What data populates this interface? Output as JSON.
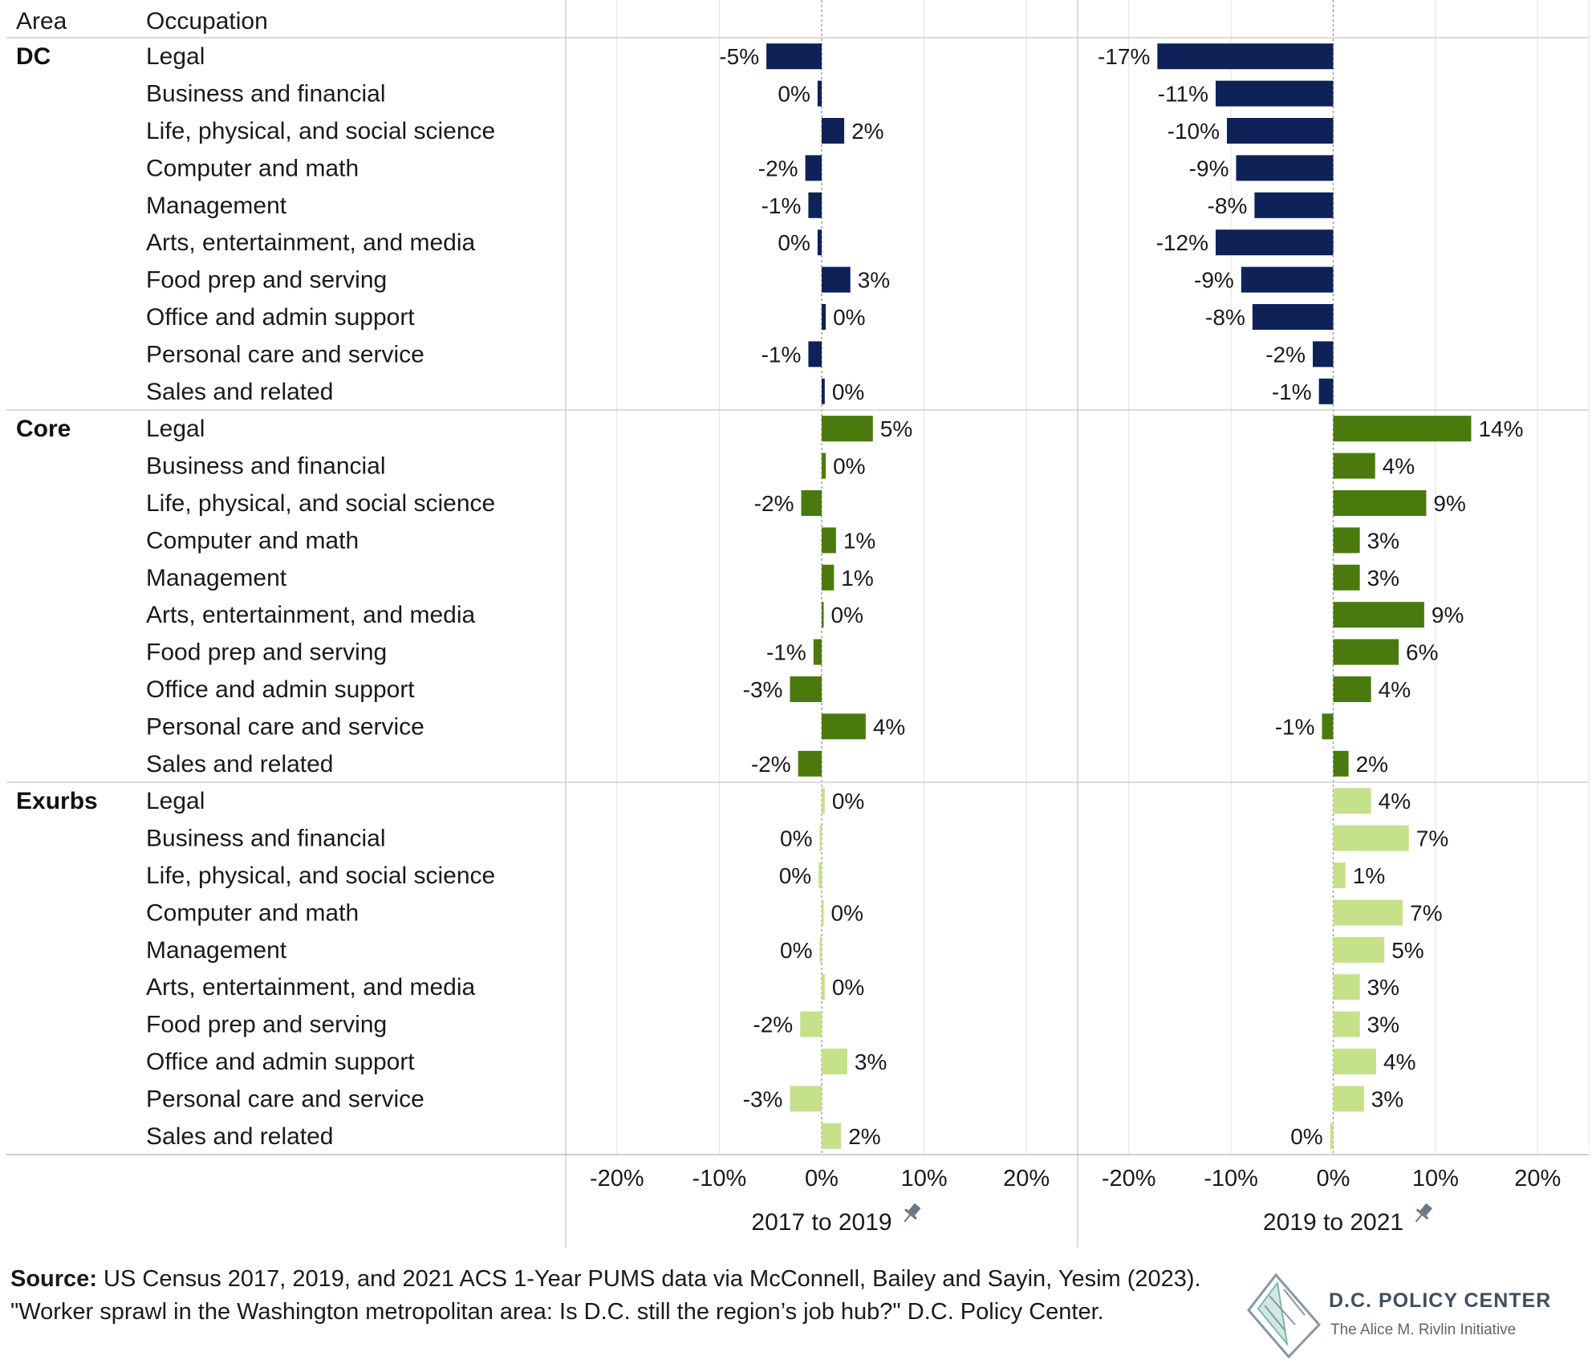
{
  "header": {
    "area": "Area",
    "occupation": "Occupation"
  },
  "chart_data": {
    "type": "bar",
    "orientation": "horizontal",
    "xlim": [
      -25,
      25
    ],
    "x_ticks": [
      "-20%",
      "-10%",
      "0%",
      "10%",
      "20%"
    ],
    "x_tick_values": [
      -20,
      -10,
      0,
      10,
      20
    ],
    "panels": [
      "2017 to 2019",
      "2019 to 2021"
    ],
    "colors": {
      "DC": "#0e2257",
      "Core": "#4a7a0e",
      "Exurbs": "#c5e18a"
    },
    "groups": [
      {
        "area": "DC",
        "rows": [
          {
            "occupation": "Legal",
            "values": [
              -5.4,
              -17.2
            ],
            "labels": [
              "-5%",
              "-17%"
            ]
          },
          {
            "occupation": "Business and financial",
            "values": [
              -0.4,
              -11.5
            ],
            "labels": [
              "0%",
              "-11%"
            ]
          },
          {
            "occupation": "Life, physical, and social science",
            "values": [
              2.2,
              -10.4
            ],
            "labels": [
              "2%",
              "-10%"
            ]
          },
          {
            "occupation": "Computer and math",
            "values": [
              -1.6,
              -9.5
            ],
            "labels": [
              "-2%",
              "-9%"
            ]
          },
          {
            "occupation": "Management",
            "values": [
              -1.3,
              -7.7
            ],
            "labels": [
              "-1%",
              "-8%"
            ]
          },
          {
            "occupation": "Arts, entertainment, and media",
            "values": [
              -0.4,
              -11.5
            ],
            "labels": [
              "0%",
              "-12%"
            ]
          },
          {
            "occupation": "Food prep and serving",
            "values": [
              2.8,
              -9.0
            ],
            "labels": [
              "3%",
              "-9%"
            ]
          },
          {
            "occupation": "Office and admin support",
            "values": [
              0.4,
              -7.9
            ],
            "labels": [
              "0%",
              "-8%"
            ]
          },
          {
            "occupation": "Personal care and service",
            "values": [
              -1.3,
              -2.0
            ],
            "labels": [
              "-1%",
              "-2%"
            ]
          },
          {
            "occupation": "Sales and related",
            "values": [
              0.3,
              -1.4
            ],
            "labels": [
              "0%",
              "-1%"
            ]
          }
        ]
      },
      {
        "area": "Core",
        "rows": [
          {
            "occupation": "Legal",
            "values": [
              5.0,
              13.5
            ],
            "labels": [
              "5%",
              "14%"
            ]
          },
          {
            "occupation": "Business and financial",
            "values": [
              0.4,
              4.1
            ],
            "labels": [
              "0%",
              "4%"
            ]
          },
          {
            "occupation": "Life, physical, and social science",
            "values": [
              -2.0,
              9.1
            ],
            "labels": [
              "-2%",
              "9%"
            ]
          },
          {
            "occupation": "Computer and math",
            "values": [
              1.4,
              2.6
            ],
            "labels": [
              "1%",
              "3%"
            ]
          },
          {
            "occupation": "Management",
            "values": [
              1.2,
              2.6
            ],
            "labels": [
              "1%",
              "3%"
            ]
          },
          {
            "occupation": "Arts, entertainment, and media",
            "values": [
              0.2,
              8.9
            ],
            "labels": [
              "0%",
              "9%"
            ]
          },
          {
            "occupation": "Food prep and serving",
            "values": [
              -0.8,
              6.4
            ],
            "labels": [
              "-1%",
              "6%"
            ]
          },
          {
            "occupation": "Office and admin support",
            "values": [
              -3.1,
              3.7
            ],
            "labels": [
              "-3%",
              "4%"
            ]
          },
          {
            "occupation": "Personal care and service",
            "values": [
              4.3,
              -1.1
            ],
            "labels": [
              "4%",
              "-1%"
            ]
          },
          {
            "occupation": "Sales and related",
            "values": [
              -2.3,
              1.5
            ],
            "labels": [
              "-2%",
              "2%"
            ]
          }
        ]
      },
      {
        "area": "Exurbs",
        "rows": [
          {
            "occupation": "Legal",
            "values": [
              0.3,
              3.7
            ],
            "labels": [
              "0%",
              "4%"
            ]
          },
          {
            "occupation": "Business and financial",
            "values": [
              -0.1,
              7.4
            ],
            "labels": [
              "0%",
              "7%"
            ]
          },
          {
            "occupation": "Life, physical, and social science",
            "values": [
              -0.3,
              1.2
            ],
            "labels": [
              "0%",
              "1%"
            ]
          },
          {
            "occupation": "Computer and math",
            "values": [
              0.2,
              6.8
            ],
            "labels": [
              "0%",
              "7%"
            ]
          },
          {
            "occupation": "Management",
            "values": [
              -0.1,
              5.0
            ],
            "labels": [
              "0%",
              "5%"
            ]
          },
          {
            "occupation": "Arts, entertainment, and media",
            "values": [
              0.3,
              2.6
            ],
            "labels": [
              "0%",
              "3%"
            ]
          },
          {
            "occupation": "Food prep and serving",
            "values": [
              -2.1,
              2.6
            ],
            "labels": [
              "-2%",
              "3%"
            ]
          },
          {
            "occupation": "Office and admin support",
            "values": [
              2.5,
              4.2
            ],
            "labels": [
              "3%",
              "4%"
            ]
          },
          {
            "occupation": "Personal care and service",
            "values": [
              -3.1,
              3.0
            ],
            "labels": [
              "-3%",
              "3%"
            ]
          },
          {
            "occupation": "Sales and related",
            "values": [
              1.9,
              -0.3
            ],
            "labels": [
              "2%",
              "0%"
            ]
          }
        ]
      }
    ]
  },
  "footer": {
    "source_label": "Source:",
    "source_text": " US Census 2017, 2019, and 2021 ACS 1-Year PUMS data via McConnell, Bailey and Sayin, Yesim (2023). \"Worker sprawl in the Washington metropolitan area: Is D.C. still the region’s job hub?\" D.C. Policy Center."
  },
  "logo": {
    "title": "D.C. POLICY CENTER",
    "subtitle": "The Alice M. Rivlin Initiative",
    "icon": "dc-map-icon"
  }
}
